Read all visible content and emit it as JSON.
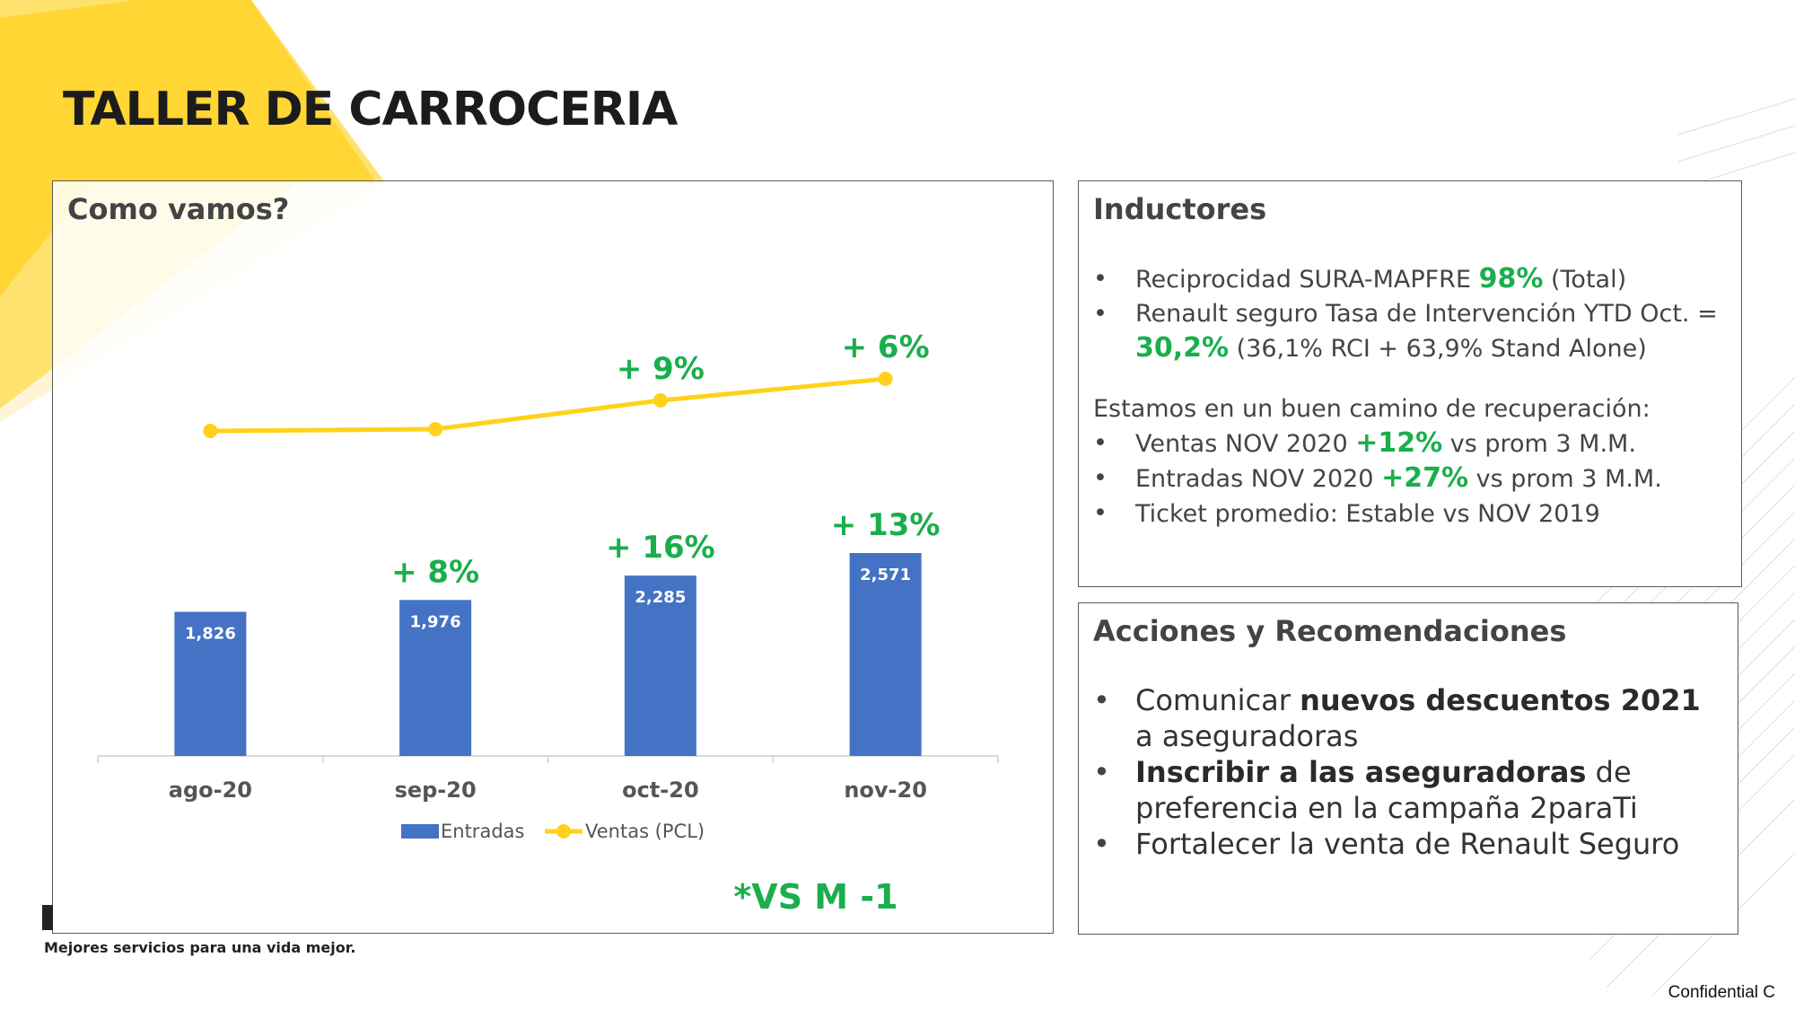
{
  "page": {
    "title": "TALLER DE CARROCERIA",
    "tagline": "Mejores servicios para una vida mejor.",
    "confidential": "Confidential C"
  },
  "chart_panel": {
    "heading": "Como vamos?",
    "footnote": "*VS M -1"
  },
  "chart_data": {
    "type": "bar+line",
    "categories": [
      "ago-20",
      "sep-20",
      "oct-20",
      "nov-20"
    ],
    "series": [
      {
        "name": "Entradas",
        "type": "bar",
        "color": "#4472C4",
        "values": [
          1826,
          1976,
          2285,
          2571
        ],
        "value_labels": [
          "1,826",
          "1,976",
          "2,285",
          "2,571"
        ],
        "change_labels": [
          "",
          "+ 8%",
          "+ 16%",
          "+ 13%"
        ]
      },
      {
        "name": "Ventas (PCL)",
        "type": "line",
        "color": "#FFD11A",
        "change_labels": [
          "",
          "",
          "+ 9%",
          "+ 6%"
        ]
      }
    ],
    "legend_position": "bottom"
  },
  "inductores": {
    "heading": "Inductores",
    "items": [
      {
        "pre": "Reciprocidad SURA-MAPFRE ",
        "highlight": "98%",
        "post": " (Total)"
      },
      {
        "pre": "Renault seguro Tasa de Intervención YTD Oct. = ",
        "highlight": "30,2%",
        "post": " (36,1% RCI + 63,9% Stand Alone)"
      }
    ],
    "subheading": "Estamos en un buen camino de recuperación:",
    "items2": [
      {
        "pre": "Ventas NOV 2020 ",
        "highlight": "+12%",
        "post": " vs prom 3 M.M."
      },
      {
        "pre": "Entradas NOV 2020 ",
        "highlight": "+27%",
        "post": " vs prom 3 M.M."
      },
      {
        "pre": "Ticket promedio: Estable vs NOV 2019",
        "highlight": "",
        "post": ""
      }
    ]
  },
  "acciones": {
    "heading": "Acciones y Recomendaciones",
    "items": [
      {
        "pre": "Comunicar ",
        "bold": "nuevos descuentos 2021",
        "post": " a aseguradoras"
      },
      {
        "pre": "",
        "bold": "Inscribir a las aseguradoras",
        "post": " de preferencia en la campaña 2paraTi"
      },
      {
        "pre": "Fortalecer la venta de Renault Seguro",
        "bold": "",
        "post": ""
      }
    ]
  },
  "colors": {
    "accent_yellow": "#FFD11A",
    "green": "#1AAE4C",
    "bar_blue": "#4472C4"
  }
}
